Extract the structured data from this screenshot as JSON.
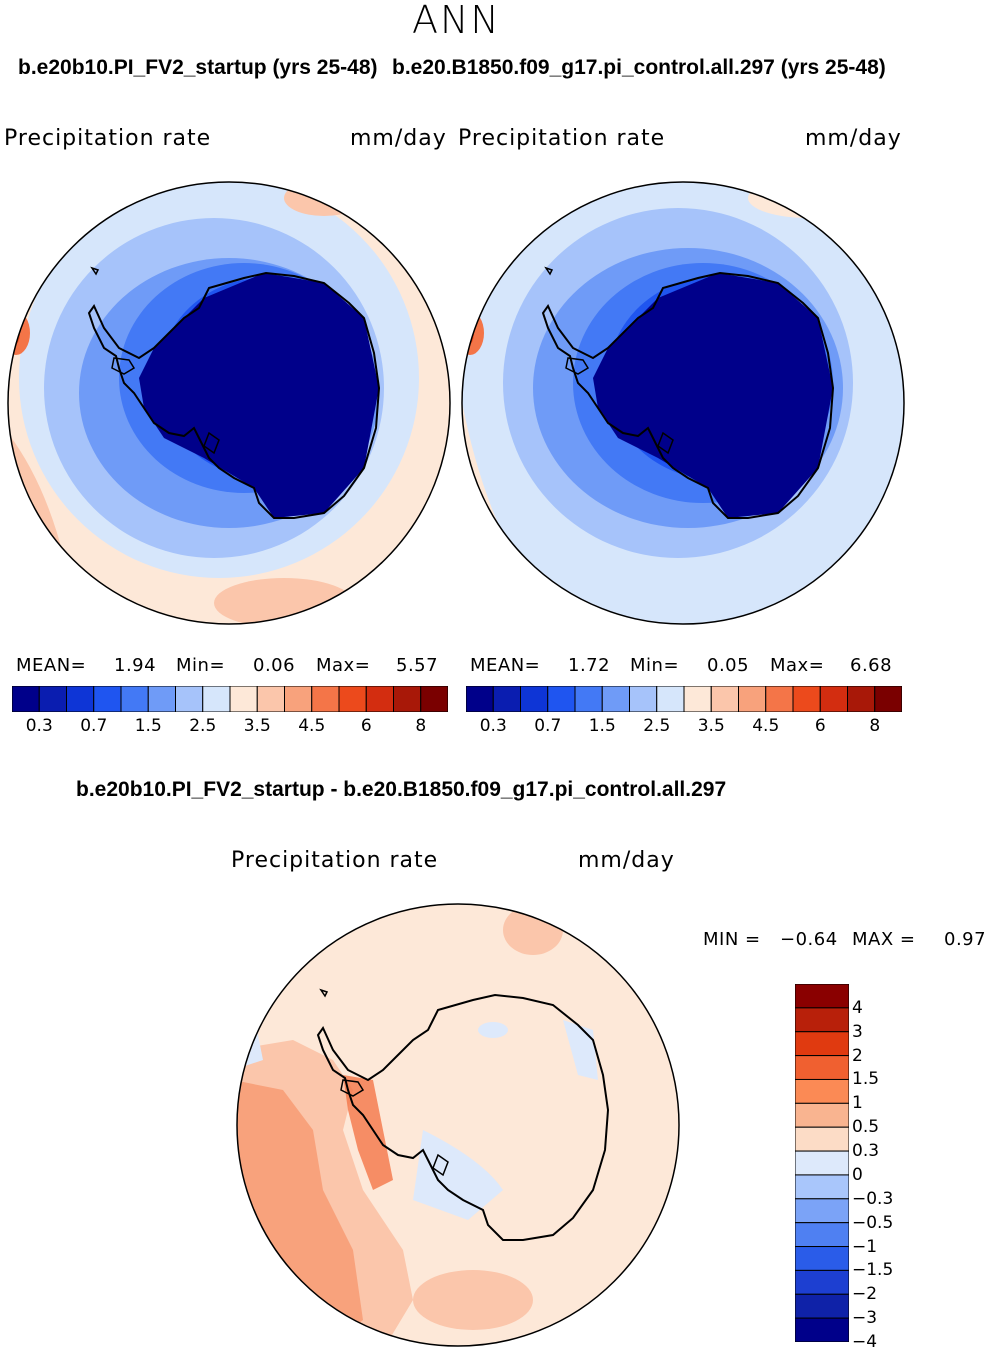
{
  "season": "ANN",
  "panels": [
    {
      "case_title": "b.e20b10.PI_FV2_startup (yrs 25-48)",
      "variable": "Precipitation rate",
      "units": "mm/day",
      "stats": {
        "mean_label": "MEAN=",
        "mean": "1.94",
        "min_label": "Min=",
        "min": "0.06",
        "max_label": "Max=",
        "max": "5.57"
      }
    },
    {
      "case_title": "b.e20.B1850.f09_g17.pi_control.all.297 (yrs 25-48)",
      "variable": "Precipitation rate",
      "units": "mm/day",
      "stats": {
        "mean_label": "MEAN=",
        "mean": "1.72",
        "min_label": "Min=",
        "min": "0.05",
        "max_label": "Max=",
        "max": "6.68"
      }
    }
  ],
  "abs_colorbar": {
    "colors": [
      "#00008a",
      "#0a1db0",
      "#0e35d6",
      "#1f55f0",
      "#4379f5",
      "#6f9bf7",
      "#a6c3fa",
      "#d6e6fb",
      "#fde8d8",
      "#fbc6ab",
      "#f8a27c",
      "#f47548",
      "#ec4a1c",
      "#d32d10",
      "#a81808",
      "#7a0000"
    ],
    "ticks": [
      "0.3",
      "0.7",
      "1.5",
      "2.5",
      "3.5",
      "4.5",
      "6",
      "8"
    ]
  },
  "diff_panel": {
    "title": "b.e20b10.PI_FV2_startup - b.e20.B1850.f09_g17.pi_control.all.297",
    "variable": "Precipitation rate",
    "units": "mm/day",
    "min_label": "MIN =",
    "min": "−0.64",
    "max_label": "MAX =",
    "max": "0.97"
  },
  "diff_colorbar": {
    "colors_top_to_bottom": [
      "#8a0000",
      "#b8200a",
      "#e03a10",
      "#f06030",
      "#fb8a55",
      "#f9b490",
      "#fcdcc6",
      "#dde9fb",
      "#a9c6fb",
      "#7ba3f7",
      "#4f80f2",
      "#2a5ce9",
      "#1d3fd1",
      "#0f22a8",
      "#00008a"
    ],
    "ticks_top_to_bottom": [
      "4",
      "3",
      "2",
      "1.5",
      "1",
      "0.5",
      "0.3",
      "0",
      "−0.3",
      "−0.5",
      "−1",
      "−1.5",
      "−2",
      "−3",
      "−4"
    ]
  }
}
